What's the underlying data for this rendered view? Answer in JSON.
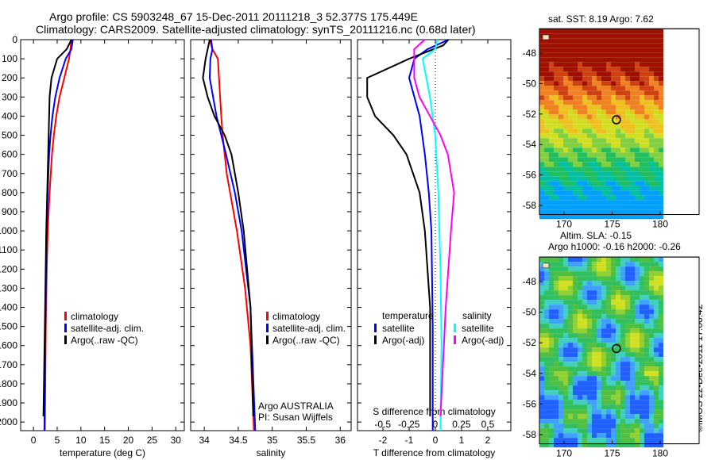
{
  "title": "Argo profile: CS 5903248_67 15-Dec-2011 20111218_3 52.377S 175.449E",
  "subtitle": "Climatology: CARS2009. Satellite-adjusted climatology: synTS_20111216.nc (0.68d later)",
  "credit": "©IMOS 22-Dec-2011 17:00:42",
  "colors": {
    "climatology": "#ff0000",
    "satellite": "#0000ff",
    "argo": "#000000",
    "sat_s": "#00ffff",
    "argo_s": "#ff00ff"
  },
  "chart_data": [
    {
      "type": "line",
      "xlabel": "temperature (deg C)",
      "ylabel": "",
      "xlim": [
        -2.7,
        31.8
      ],
      "ylim": [
        2045,
        0
      ],
      "xticks": [
        0,
        5,
        10,
        15,
        20,
        25,
        30
      ],
      "yticks": [
        0,
        100,
        200,
        300,
        400,
        500,
        600,
        700,
        800,
        900,
        1000,
        1100,
        1200,
        1300,
        1400,
        1500,
        1600,
        1700,
        1800,
        1900,
        2000
      ],
      "legend": [
        "climatology",
        "satellite-adj. clim.",
        "Argo(..raw -QC)"
      ],
      "series": [
        {
          "name": "climatology",
          "color": "#ff0000",
          "depth": [
            0,
            50,
            100,
            200,
            300,
            400,
            500,
            600,
            800,
            1000,
            1200,
            1500,
            2045
          ],
          "values": [
            8.0,
            7.8,
            7.5,
            6.5,
            5.5,
            4.8,
            4.3,
            3.9,
            3.4,
            3.0,
            2.8,
            2.6,
            2.4
          ]
        },
        {
          "name": "satellite-adj. clim.",
          "color": "#0000ff",
          "depth": [
            0,
            50,
            100,
            200,
            300,
            400,
            500,
            600,
            800,
            1000,
            1500,
            2045
          ],
          "values": [
            8.3,
            8.0,
            6.8,
            5.5,
            4.6,
            4.0,
            3.6,
            3.3,
            3.0,
            2.8,
            2.5,
            2.3
          ]
        },
        {
          "name": "Argo(..raw -QC)",
          "color": "#000000",
          "depth": [
            0,
            50,
            100,
            200,
            300,
            400,
            500,
            600,
            800,
            1000,
            1500,
            1970
          ],
          "values": [
            8.0,
            7.0,
            5.0,
            3.8,
            3.4,
            3.3,
            3.2,
            3.1,
            2.9,
            2.7,
            2.4,
            2.1
          ]
        }
      ]
    },
    {
      "type": "line",
      "xlabel": "salinity",
      "xlim": [
        33.8,
        36.16
      ],
      "ylim": [
        2045,
        0
      ],
      "xticks": [
        34,
        34.5,
        35,
        35.5,
        36
      ],
      "xticklabels": [
        "34",
        "34.5",
        "35",
        "35.5",
        "36"
      ],
      "legend": [
        "climatology",
        "satellite-adj. clim.",
        "Argo(..raw -QC)"
      ],
      "annotation": [
        "Argo AUSTRALIA",
        "PI: Susan Wijffels"
      ],
      "series": [
        {
          "name": "climatology",
          "color": "#ff0000",
          "depth": [
            0,
            50,
            100,
            400,
            500,
            700,
            1000,
            1300,
            1600,
            2045
          ],
          "values": [
            34.08,
            34.12,
            34.2,
            34.25,
            34.27,
            34.33,
            34.48,
            34.6,
            34.68,
            34.73
          ]
        },
        {
          "name": "satellite-adj. clim.",
          "color": "#0000ff",
          "depth": [
            0,
            50,
            100,
            200,
            400,
            600,
            800,
            1000,
            1400,
            2045
          ],
          "values": [
            34.1,
            34.12,
            34.09,
            34.08,
            34.18,
            34.32,
            34.45,
            34.55,
            34.68,
            34.75
          ]
        },
        {
          "name": "Argo(..raw -QC)",
          "color": "#000000",
          "depth": [
            0,
            50,
            100,
            200,
            300,
            400,
            500,
            600,
            800,
            1000,
            1400,
            1970
          ],
          "values": [
            34.08,
            34.05,
            34.02,
            33.98,
            34.05,
            34.15,
            34.3,
            34.4,
            34.5,
            34.58,
            34.68,
            34.72
          ]
        }
      ]
    },
    {
      "type": "line",
      "xlabel": "T difference from climatology",
      "x2label": "S difference from climatology",
      "xlim": [
        -2.97,
        2.88
      ],
      "x2lim": [
        -0.74,
        0.72
      ],
      "ylim": [
        2045,
        0
      ],
      "xticks": [
        -2,
        -1,
        0,
        1,
        2
      ],
      "x2ticks": [
        -0.5,
        -0.25,
        0,
        0.25,
        0.5
      ],
      "legend_t_title": "temperature",
      "legend_s_title": "salinity",
      "legend": [
        "satellite",
        "Argo(-adj)",
        "satellite",
        "Argo(-adj)"
      ],
      "series": [
        {
          "name": "T satellite",
          "axis": "T",
          "color": "#0000ff",
          "depth": [
            0,
            50,
            100,
            200,
            300,
            400,
            600,
            800,
            1000,
            1500,
            2045
          ],
          "values": [
            0.5,
            -0.3,
            -0.8,
            -1.0,
            -0.8,
            -0.6,
            -0.4,
            -0.25,
            -0.15,
            -0.1,
            -0.1
          ]
        },
        {
          "name": "T Argo(-adj)",
          "axis": "T",
          "color": "#000000",
          "depth": [
            0,
            30,
            100,
            200,
            300,
            400,
            500,
            600,
            800,
            1000,
            1400,
            1970
          ],
          "values": [
            0.5,
            0.3,
            -1.0,
            -2.6,
            -2.6,
            -2.3,
            -1.6,
            -1.1,
            -0.6,
            -0.4,
            -0.2,
            -0.2
          ]
        },
        {
          "name": "S satellite",
          "axis": "S",
          "color": "#00ffff",
          "depth": [
            0,
            50,
            100,
            300,
            500,
            800,
            1200,
            1600,
            2045
          ],
          "values": [
            0.02,
            0.0,
            -0.12,
            -0.05,
            0.0,
            0.03,
            0.05,
            0.06,
            0.05
          ]
        },
        {
          "name": "S Argo(-adj)",
          "axis": "S",
          "color": "#ff00ff",
          "depth": [
            0,
            50,
            100,
            200,
            300,
            400,
            500,
            600,
            800,
            1000,
            1400,
            1970
          ],
          "values": [
            -0.1,
            -0.2,
            -0.2,
            -0.2,
            -0.15,
            -0.05,
            0.05,
            0.12,
            0.18,
            0.15,
            0.1,
            0.05
          ]
        }
      ]
    },
    {
      "type": "heatmap",
      "title": "sat. SST: 8.19 Argo: 7.62",
      "xticks": [
        170,
        175,
        180
      ],
      "yticks": [
        -48,
        -50,
        -52,
        -54,
        -56,
        -58
      ],
      "marker": [
        175.449,
        -52.377
      ]
    },
    {
      "type": "heatmap",
      "title": [
        "Altim. SLA: -0.15",
        "Argo h1000: -0.16 h2000: -0.26"
      ],
      "xticks": [
        170,
        175,
        180
      ],
      "yticks": [
        -48,
        -50,
        -52,
        -54,
        -56,
        -58
      ],
      "marker": [
        175.449,
        -52.377
      ]
    }
  ]
}
